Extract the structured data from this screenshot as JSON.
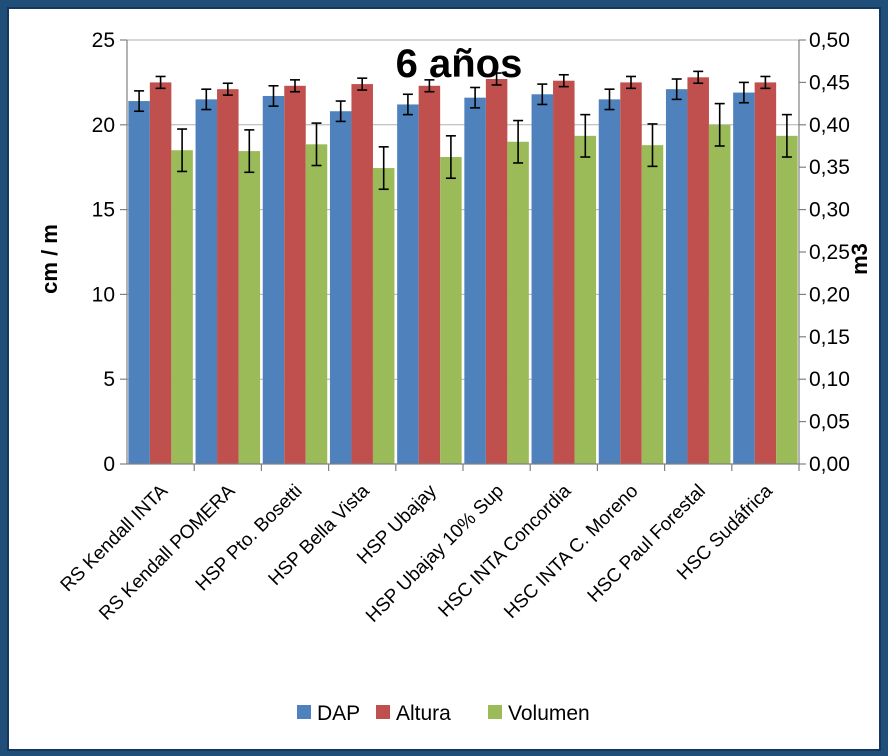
{
  "chart_data": {
    "type": "bar",
    "title": "6 años",
    "ylabel": "cm / m",
    "y2label": "m3",
    "ylim": [
      0,
      25
    ],
    "y2lim": [
      0,
      0.5
    ],
    "yticks": [
      "0",
      "5",
      "10",
      "15",
      "20",
      "25"
    ],
    "y2ticks": [
      "0,00",
      "0,05",
      "0,10",
      "0,15",
      "0,20",
      "0,25",
      "0,30",
      "0,35",
      "0,40",
      "0,45",
      "0,50"
    ],
    "grid": true,
    "legend": "bottom",
    "categories": [
      "RS Kendall INTA",
      "RS Kendall POMERA",
      "HSP Pto. Bosetti",
      "HSP Bella Vista",
      "HSP Ubajay",
      "HSP Ubajay 10% Sup",
      "HSC INTA Concordia",
      "HSC INTA C. Moreno",
      "HSC Paul Forestal",
      "HSC Sudáfrica"
    ],
    "series": [
      {
        "name": "DAP",
        "color": "#4f81bd",
        "axis": "left",
        "values": [
          21.4,
          21.5,
          21.7,
          20.8,
          21.2,
          21.6,
          21.8,
          21.5,
          22.1,
          21.9
        ],
        "errors": [
          0.6,
          0.6,
          0.6,
          0.6,
          0.6,
          0.6,
          0.6,
          0.6,
          0.6,
          0.6
        ]
      },
      {
        "name": "Altura",
        "color": "#c0504d",
        "axis": "left",
        "values": [
          22.5,
          22.1,
          22.3,
          22.4,
          22.3,
          22.7,
          22.6,
          22.5,
          22.8,
          22.5
        ],
        "errors": [
          0.35,
          0.35,
          0.35,
          0.35,
          0.35,
          0.35,
          0.35,
          0.35,
          0.35,
          0.35
        ]
      },
      {
        "name": "Volumen",
        "color": "#9bbb59",
        "axis": "right",
        "values": [
          0.37,
          0.369,
          0.377,
          0.349,
          0.362,
          0.38,
          0.387,
          0.376,
          0.4,
          0.387
        ],
        "errors": [
          0.025,
          0.025,
          0.025,
          0.025,
          0.025,
          0.025,
          0.025,
          0.025,
          0.025,
          0.025
        ]
      }
    ]
  }
}
